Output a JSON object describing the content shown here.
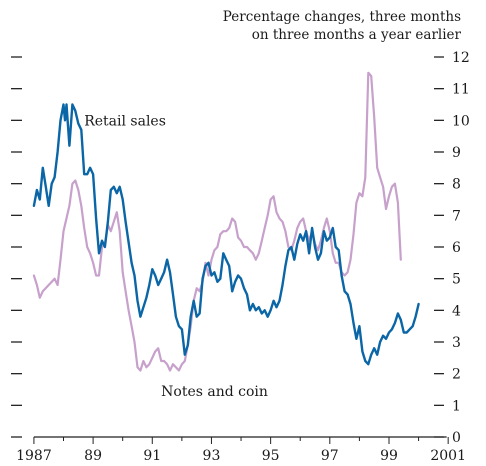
{
  "chart_data": {
    "type": "line",
    "unit_line1": "Percentage changes, three months",
    "unit_line2": "on three months a year earlier",
    "xlim": [
      1986.8,
      2001.4
    ],
    "ylim": [
      0,
      12
    ],
    "x_tick_labels": [
      {
        "x": 1987,
        "label": "1987"
      },
      {
        "x": 1989,
        "label": "89"
      },
      {
        "x": 1991,
        "label": "91"
      },
      {
        "x": 1993,
        "label": "93"
      },
      {
        "x": 1995,
        "label": "95"
      },
      {
        "x": 1997,
        "label": "97"
      },
      {
        "x": 1999,
        "label": "99"
      },
      {
        "x": 2001,
        "label": "2001"
      }
    ],
    "y_ticks": [
      0,
      1,
      2,
      3,
      4,
      5,
      6,
      7,
      8,
      9,
      10,
      11,
      12
    ],
    "y_tick_labels": [
      "0",
      "1",
      "2",
      "3",
      "4",
      "5",
      "6",
      "7",
      "8",
      "9",
      "10",
      "11",
      "12"
    ],
    "colors": {
      "retail_sales": "#0a66a6",
      "notes_and_coin": "#c7a1cc",
      "axis": "#222222"
    },
    "series": [
      {
        "name": "Retail sales",
        "color": "#0a66a6",
        "points": [
          [
            1987.0,
            7.3
          ],
          [
            1987.1,
            7.8
          ],
          [
            1987.2,
            7.5
          ],
          [
            1987.3,
            8.5
          ],
          [
            1987.4,
            7.9
          ],
          [
            1987.5,
            7.3
          ],
          [
            1987.6,
            8.0
          ],
          [
            1987.7,
            8.2
          ],
          [
            1987.8,
            9.0
          ],
          [
            1987.9,
            10.0
          ],
          [
            1988.0,
            10.5
          ],
          [
            1988.05,
            10.0
          ],
          [
            1988.1,
            10.5
          ],
          [
            1988.2,
            9.2
          ],
          [
            1988.3,
            10.5
          ],
          [
            1988.4,
            10.3
          ],
          [
            1988.5,
            9.9
          ],
          [
            1988.6,
            9.7
          ],
          [
            1988.7,
            8.3
          ],
          [
            1988.8,
            8.3
          ],
          [
            1988.9,
            8.5
          ],
          [
            1989.0,
            8.3
          ],
          [
            1989.1,
            6.9
          ],
          [
            1989.2,
            5.8
          ],
          [
            1989.3,
            6.2
          ],
          [
            1989.4,
            6.0
          ],
          [
            1989.5,
            6.8
          ],
          [
            1989.6,
            7.8
          ],
          [
            1989.7,
            7.9
          ],
          [
            1989.8,
            7.7
          ],
          [
            1989.9,
            7.9
          ],
          [
            1990.0,
            7.5
          ],
          [
            1990.1,
            6.8
          ],
          [
            1990.3,
            5.5
          ],
          [
            1990.4,
            5.1
          ],
          [
            1990.5,
            4.3
          ],
          [
            1990.6,
            3.8
          ],
          [
            1990.7,
            4.1
          ],
          [
            1990.8,
            4.4
          ],
          [
            1990.9,
            4.8
          ],
          [
            1991.0,
            5.3
          ],
          [
            1991.1,
            5.1
          ],
          [
            1991.2,
            4.8
          ],
          [
            1991.3,
            5.0
          ],
          [
            1991.4,
            5.2
          ],
          [
            1991.5,
            5.6
          ],
          [
            1991.6,
            5.2
          ],
          [
            1991.7,
            4.5
          ],
          [
            1991.8,
            3.8
          ],
          [
            1991.9,
            3.5
          ],
          [
            1992.0,
            3.4
          ],
          [
            1992.1,
            2.6
          ],
          [
            1992.2,
            2.9
          ],
          [
            1992.3,
            3.8
          ],
          [
            1992.4,
            4.3
          ],
          [
            1992.5,
            3.8
          ],
          [
            1992.6,
            3.9
          ],
          [
            1992.7,
            5.0
          ],
          [
            1992.8,
            5.4
          ],
          [
            1992.9,
            5.5
          ],
          [
            1993.0,
            5.1
          ],
          [
            1993.1,
            5.2
          ],
          [
            1993.2,
            4.9
          ],
          [
            1993.3,
            5.0
          ],
          [
            1993.4,
            5.8
          ],
          [
            1993.5,
            5.6
          ],
          [
            1993.6,
            5.4
          ],
          [
            1993.7,
            4.6
          ],
          [
            1993.8,
            4.9
          ],
          [
            1993.9,
            5.1
          ],
          [
            1994.0,
            5.0
          ],
          [
            1994.1,
            4.7
          ],
          [
            1994.2,
            4.5
          ],
          [
            1994.3,
            4.0
          ],
          [
            1994.4,
            4.2
          ],
          [
            1994.5,
            4.0
          ],
          [
            1994.6,
            4.1
          ],
          [
            1994.7,
            3.9
          ],
          [
            1994.8,
            4.0
          ],
          [
            1994.9,
            3.8
          ],
          [
            1995.0,
            4.0
          ],
          [
            1995.1,
            4.3
          ],
          [
            1995.2,
            4.1
          ],
          [
            1995.3,
            4.3
          ],
          [
            1995.4,
            4.8
          ],
          [
            1995.5,
            5.4
          ],
          [
            1995.6,
            5.9
          ],
          [
            1995.7,
            6.0
          ],
          [
            1995.8,
            5.6
          ],
          [
            1995.9,
            6.1
          ],
          [
            1996.0,
            6.4
          ],
          [
            1996.1,
            6.2
          ],
          [
            1996.2,
            6.5
          ],
          [
            1996.3,
            5.8
          ],
          [
            1996.4,
            6.6
          ],
          [
            1996.5,
            6.0
          ],
          [
            1996.6,
            5.6
          ],
          [
            1996.7,
            5.8
          ],
          [
            1996.8,
            6.5
          ],
          [
            1996.9,
            6.2
          ],
          [
            1997.0,
            6.3
          ],
          [
            1997.1,
            6.6
          ],
          [
            1997.2,
            6.0
          ],
          [
            1997.3,
            5.9
          ],
          [
            1997.4,
            5.1
          ],
          [
            1997.5,
            4.6
          ],
          [
            1997.6,
            4.5
          ],
          [
            1997.7,
            4.2
          ],
          [
            1997.8,
            3.6
          ],
          [
            1997.9,
            3.1
          ],
          [
            1998.0,
            3.5
          ],
          [
            1998.1,
            2.7
          ],
          [
            1998.2,
            2.4
          ],
          [
            1998.3,
            2.3
          ],
          [
            1998.4,
            2.6
          ],
          [
            1998.5,
            2.8
          ],
          [
            1998.6,
            2.6
          ],
          [
            1998.7,
            3.0
          ],
          [
            1998.8,
            3.2
          ],
          [
            1998.9,
            3.1
          ],
          [
            1999.0,
            3.3
          ],
          [
            1999.1,
            3.4
          ],
          [
            1999.2,
            3.6
          ],
          [
            1999.3,
            3.9
          ],
          [
            1999.4,
            3.7
          ],
          [
            1999.5,
            3.3
          ],
          [
            1999.6,
            3.3
          ],
          [
            1999.7,
            3.4
          ],
          [
            1999.8,
            3.5
          ],
          [
            1999.9,
            3.8
          ],
          [
            2000.0,
            4.2
          ]
        ]
      },
      {
        "name": "Notes and coin",
        "color": "#c7a1cc",
        "points": [
          [
            1987.0,
            5.1
          ],
          [
            1987.1,
            4.8
          ],
          [
            1987.2,
            4.4
          ],
          [
            1987.3,
            4.6
          ],
          [
            1987.5,
            4.8
          ],
          [
            1987.7,
            5.0
          ],
          [
            1987.8,
            4.8
          ],
          [
            1987.9,
            5.6
          ],
          [
            1988.0,
            6.5
          ],
          [
            1988.2,
            7.3
          ],
          [
            1988.3,
            8.0
          ],
          [
            1988.4,
            8.1
          ],
          [
            1988.5,
            7.8
          ],
          [
            1988.6,
            7.3
          ],
          [
            1988.7,
            6.6
          ],
          [
            1988.8,
            6.0
          ],
          [
            1988.9,
            5.8
          ],
          [
            1989.0,
            5.5
          ],
          [
            1989.1,
            5.1
          ],
          [
            1989.2,
            5.1
          ],
          [
            1989.3,
            6.0
          ],
          [
            1989.4,
            6.1
          ],
          [
            1989.5,
            6.7
          ],
          [
            1989.6,
            6.5
          ],
          [
            1989.7,
            6.8
          ],
          [
            1989.8,
            7.1
          ],
          [
            1989.9,
            6.5
          ],
          [
            1990.0,
            5.2
          ],
          [
            1990.1,
            4.6
          ],
          [
            1990.2,
            4.0
          ],
          [
            1990.3,
            3.5
          ],
          [
            1990.4,
            3.0
          ],
          [
            1990.5,
            2.2
          ],
          [
            1990.6,
            2.1
          ],
          [
            1990.7,
            2.4
          ],
          [
            1990.8,
            2.2
          ],
          [
            1990.9,
            2.3
          ],
          [
            1991.0,
            2.5
          ],
          [
            1991.1,
            2.7
          ],
          [
            1991.2,
            2.8
          ],
          [
            1991.3,
            2.4
          ],
          [
            1991.4,
            2.4
          ],
          [
            1991.5,
            2.3
          ],
          [
            1991.6,
            2.1
          ],
          [
            1991.7,
            2.3
          ],
          [
            1991.8,
            2.2
          ],
          [
            1991.9,
            2.1
          ],
          [
            1992.0,
            2.3
          ],
          [
            1992.1,
            2.4
          ],
          [
            1992.2,
            2.9
          ],
          [
            1992.3,
            3.5
          ],
          [
            1992.4,
            4.3
          ],
          [
            1992.5,
            4.7
          ],
          [
            1992.6,
            4.6
          ],
          [
            1992.7,
            4.9
          ],
          [
            1992.8,
            5.5
          ],
          [
            1992.9,
            5.1
          ],
          [
            1993.0,
            5.6
          ],
          [
            1993.1,
            5.9
          ],
          [
            1993.2,
            6.0
          ],
          [
            1993.3,
            6.4
          ],
          [
            1993.4,
            6.5
          ],
          [
            1993.5,
            6.5
          ],
          [
            1993.6,
            6.6
          ],
          [
            1993.7,
            6.9
          ],
          [
            1993.8,
            6.8
          ],
          [
            1993.9,
            6.3
          ],
          [
            1994.0,
            6.2
          ],
          [
            1994.1,
            6.0
          ],
          [
            1994.2,
            6.0
          ],
          [
            1994.3,
            5.9
          ],
          [
            1994.4,
            5.8
          ],
          [
            1994.5,
            5.6
          ],
          [
            1994.6,
            5.8
          ],
          [
            1994.7,
            6.2
          ],
          [
            1994.8,
            6.6
          ],
          [
            1994.9,
            7.0
          ],
          [
            1995.0,
            7.5
          ],
          [
            1995.1,
            7.6
          ],
          [
            1995.2,
            7.1
          ],
          [
            1995.3,
            6.9
          ],
          [
            1995.4,
            6.8
          ],
          [
            1995.5,
            6.5
          ],
          [
            1995.6,
            6.0
          ],
          [
            1995.7,
            5.9
          ],
          [
            1995.8,
            6.2
          ],
          [
            1995.9,
            6.6
          ],
          [
            1996.0,
            6.8
          ],
          [
            1996.1,
            6.9
          ],
          [
            1996.2,
            6.5
          ],
          [
            1996.3,
            6.2
          ],
          [
            1996.4,
            6.5
          ],
          [
            1996.5,
            6.1
          ],
          [
            1996.6,
            5.9
          ],
          [
            1996.7,
            6.2
          ],
          [
            1996.8,
            6.6
          ],
          [
            1996.9,
            6.9
          ],
          [
            1997.0,
            6.5
          ],
          [
            1997.1,
            5.8
          ],
          [
            1997.2,
            5.5
          ],
          [
            1997.3,
            5.5
          ],
          [
            1997.4,
            5.2
          ],
          [
            1997.5,
            5.1
          ],
          [
            1997.6,
            5.2
          ],
          [
            1997.7,
            5.6
          ],
          [
            1997.8,
            6.4
          ],
          [
            1997.9,
            7.4
          ],
          [
            1998.0,
            7.7
          ],
          [
            1998.1,
            7.6
          ],
          [
            1998.2,
            8.2
          ],
          [
            1998.3,
            11.5
          ],
          [
            1998.4,
            11.4
          ],
          [
            1998.5,
            10.1
          ],
          [
            1998.6,
            8.5
          ],
          [
            1998.7,
            8.2
          ],
          [
            1998.8,
            7.9
          ],
          [
            1998.9,
            7.2
          ],
          [
            1999.0,
            7.6
          ],
          [
            1999.1,
            7.9
          ],
          [
            1999.2,
            8.0
          ],
          [
            1999.3,
            7.4
          ],
          [
            1999.4,
            5.6
          ]
        ]
      }
    ],
    "series_labels": [
      {
        "text": "Retail sales",
        "x": 1988.7,
        "y": 10.0
      },
      {
        "text": "Notes and coin",
        "x": 1991.3,
        "y": 1.45
      }
    ]
  }
}
